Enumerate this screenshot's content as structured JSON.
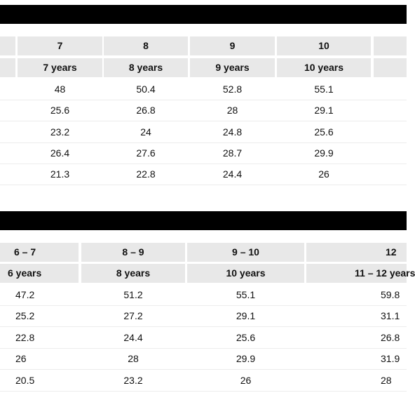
{
  "table1": {
    "sizes": [
      "7",
      "8",
      "9",
      "10",
      ""
    ],
    "ages": [
      "7 years",
      "8 years",
      "9 years",
      "10 years",
      ""
    ],
    "rows": [
      [
        "48",
        "50.4",
        "52.8",
        "55.1"
      ],
      [
        "25.6",
        "26.8",
        "28",
        "29.1"
      ],
      [
        "23.2",
        "24",
        "24.8",
        "25.6"
      ],
      [
        "26.4",
        "27.6",
        "28.7",
        "29.9"
      ],
      [
        "21.3",
        "22.8",
        "24.4",
        "26"
      ]
    ]
  },
  "table2": {
    "sizes": [
      "6 – 7",
      "8 – 9",
      "9 – 10",
      "12"
    ],
    "ages": [
      "6 years",
      "8 years",
      "10 years",
      "11 – 12 years"
    ],
    "rows": [
      [
        "47.2",
        "51.2",
        "55.1",
        "59.8"
      ],
      [
        "25.2",
        "27.2",
        "29.1",
        "31.1"
      ],
      [
        "22.8",
        "24.4",
        "25.6",
        "26.8"
      ],
      [
        "26",
        "28",
        "29.9",
        "31.9"
      ],
      [
        "20.5",
        "23.2",
        "26",
        "28"
      ]
    ]
  }
}
